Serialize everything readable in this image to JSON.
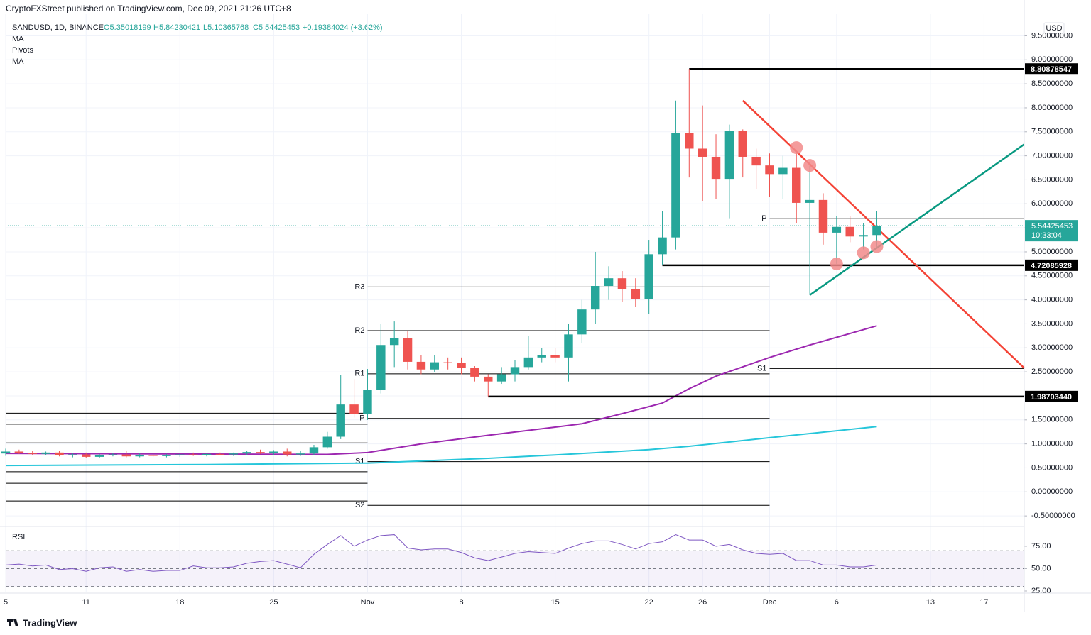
{
  "header": "CryptoFXStreet published on TradingView.com, Dec 09, 2021 21:26 UTC+8",
  "footer": "TradingView",
  "chart_data": [
    {
      "type": "candlestick",
      "title": "SANDUSD, 1D, BINANCE",
      "ohlc_labels": [
        "O5.35018199",
        "H5.84230421",
        "L5.10365768",
        "C5.54425453"
      ],
      "change_label": "+0.19384024 (+3.62%)",
      "currency": "USD",
      "countdown": "10:33:04",
      "x": [
        "10-05",
        "10-06",
        "10-07",
        "10-08",
        "10-09",
        "10-10",
        "10-11",
        "10-12",
        "10-13",
        "10-14",
        "10-15",
        "10-16",
        "10-17",
        "10-18",
        "10-19",
        "10-20",
        "10-21",
        "10-22",
        "10-23",
        "10-24",
        "10-25",
        "10-26",
        "10-27",
        "10-28",
        "10-29",
        "10-30",
        "10-31",
        "11-01",
        "11-02",
        "11-03",
        "11-04",
        "11-05",
        "11-06",
        "11-07",
        "11-08",
        "11-09",
        "11-10",
        "11-11",
        "11-12",
        "11-13",
        "11-14",
        "11-15",
        "11-16",
        "11-17",
        "11-18",
        "11-19",
        "11-20",
        "11-21",
        "11-22",
        "11-23",
        "11-24",
        "11-25",
        "11-26",
        "11-27",
        "11-28",
        "11-29",
        "11-30",
        "12-01",
        "12-02",
        "12-03",
        "12-04",
        "12-05",
        "12-06",
        "12-07",
        "12-08",
        "12-09"
      ],
      "open": [
        0.8,
        0.84,
        0.81,
        0.79,
        0.82,
        0.76,
        0.78,
        0.73,
        0.77,
        0.78,
        0.74,
        0.77,
        0.75,
        0.76,
        0.78,
        0.77,
        0.79,
        0.78,
        0.8,
        0.83,
        0.81,
        0.84,
        0.78,
        0.8,
        0.93,
        1.15,
        1.82,
        1.62,
        2.12,
        3.06,
        3.2,
        2.71,
        2.55,
        2.7,
        2.68,
        2.58,
        2.4,
        2.3,
        2.45,
        2.6,
        2.8,
        2.85,
        2.8,
        3.28,
        3.8,
        4.29,
        4.45,
        4.22,
        4.02,
        4.95,
        5.3,
        7.48,
        7.15,
        6.98,
        6.52,
        7.52,
        6.98,
        6.8,
        6.62,
        6.75,
        6.02,
        6.08,
        5.4,
        5.52,
        5.32,
        5.35018199
      ],
      "high": [
        0.9,
        0.88,
        0.86,
        0.84,
        0.85,
        0.8,
        0.82,
        0.79,
        0.81,
        0.86,
        0.8,
        0.8,
        0.79,
        0.8,
        0.82,
        0.81,
        0.82,
        0.82,
        0.86,
        0.88,
        0.87,
        0.9,
        0.85,
        0.98,
        1.25,
        2.43,
        2.35,
        2.56,
        3.5,
        3.55,
        3.35,
        2.85,
        2.85,
        2.8,
        2.8,
        2.62,
        2.45,
        2.6,
        2.75,
        3.25,
        3.0,
        3.0,
        3.5,
        4.0,
        5.0,
        4.7,
        4.6,
        4.45,
        5.25,
        5.85,
        8.15,
        8.81,
        8.05,
        7.45,
        7.65,
        7.55,
        7.15,
        7.05,
        7.0,
        7.1,
        6.8,
        6.22,
        5.75,
        5.75,
        5.6,
        5.84230421
      ],
      "low": [
        0.75,
        0.79,
        0.77,
        0.76,
        0.74,
        0.72,
        0.71,
        0.7,
        0.74,
        0.72,
        0.72,
        0.73,
        0.72,
        0.73,
        0.75,
        0.74,
        0.76,
        0.75,
        0.77,
        0.79,
        0.77,
        0.74,
        0.75,
        0.77,
        0.9,
        1.1,
        1.55,
        1.5,
        2.05,
        2.6,
        2.55,
        2.45,
        2.5,
        2.55,
        2.45,
        2.3,
        1.99,
        2.25,
        2.3,
        2.55,
        2.7,
        2.7,
        2.3,
        3.1,
        3.5,
        4.0,
        3.95,
        3.85,
        3.7,
        4.72,
        5.05,
        6.55,
        6.05,
        6.1,
        5.7,
        6.55,
        6.3,
        6.15,
        6.1,
        5.6,
        4.1,
        5.15,
        4.75,
        5.2,
        5.05,
        5.10365768
      ],
      "close": [
        0.84,
        0.81,
        0.79,
        0.82,
        0.76,
        0.78,
        0.73,
        0.77,
        0.78,
        0.74,
        0.77,
        0.75,
        0.76,
        0.78,
        0.77,
        0.79,
        0.78,
        0.8,
        0.83,
        0.81,
        0.84,
        0.78,
        0.8,
        0.93,
        1.15,
        1.82,
        1.62,
        2.12,
        3.06,
        3.2,
        2.71,
        2.55,
        2.7,
        2.68,
        2.58,
        2.4,
        2.3,
        2.45,
        2.6,
        2.8,
        2.85,
        2.8,
        3.28,
        3.8,
        4.29,
        4.45,
        4.22,
        4.02,
        4.95,
        5.3,
        7.48,
        7.15,
        6.98,
        6.52,
        7.52,
        6.98,
        6.8,
        6.62,
        6.75,
        6.02,
        6.08,
        5.4,
        5.52,
        5.32,
        5.35,
        5.54425453
      ],
      "up_color": "#26a69a",
      "down_color": "#ef5350",
      "xlim": [
        "10-05",
        "12-20"
      ],
      "xticks": [
        {
          "value": "10-05",
          "label": "5"
        },
        {
          "value": "10-11",
          "label": "11"
        },
        {
          "value": "10-18",
          "label": "18"
        },
        {
          "value": "10-25",
          "label": "25"
        },
        {
          "value": "11-01",
          "label": "Nov"
        },
        {
          "value": "11-08",
          "label": "8"
        },
        {
          "value": "11-15",
          "label": "15"
        },
        {
          "value": "11-22",
          "label": "22"
        },
        {
          "value": "11-26",
          "label": "26"
        },
        {
          "value": "12-01",
          "label": "Dec"
        },
        {
          "value": "12-06",
          "label": "6"
        },
        {
          "value": "12-13",
          "label": "13"
        },
        {
          "value": "12-17",
          "label": "17"
        }
      ],
      "ylim": [
        -0.69,
        9.95
      ],
      "yticks": [
        {
          "value": 9.5,
          "label": "9.50000000"
        },
        {
          "value": 9,
          "label": "9.00000000"
        },
        {
          "value": 8.5,
          "label": "8.50000000"
        },
        {
          "value": 8,
          "label": "8.00000000"
        },
        {
          "value": 7.5,
          "label": "7.50000000"
        },
        {
          "value": 7,
          "label": "7.00000000"
        },
        {
          "value": 6.5,
          "label": "6.50000000"
        },
        {
          "value": 6,
          "label": "6.00000000"
        },
        {
          "value": 5.5,
          "label": "5.50000000"
        },
        {
          "value": 5,
          "label": "5.00000000"
        },
        {
          "value": 4.5,
          "label": "4.50000000"
        },
        {
          "value": 4,
          "label": "4.00000000"
        },
        {
          "value": 3.5,
          "label": "3.50000000"
        },
        {
          "value": 3,
          "label": "3.00000000"
        },
        {
          "value": 2.5,
          "label": "2.50000000"
        },
        {
          "value": 2,
          "label": "2.00000000"
        },
        {
          "value": 1.5,
          "label": "1.50000000"
        },
        {
          "value": 1,
          "label": "1.00000000"
        },
        {
          "value": 0.5,
          "label": "0.50000000"
        },
        {
          "value": 0,
          "label": "0.00000000"
        },
        {
          "value": -0.5,
          "label": "-0.50000000"
        }
      ],
      "grid": true,
      "moving_averages": [
        {
          "name": "MA",
          "color": "#26c6da",
          "x": [
            "10-05",
            "10-20",
            "11-01",
            "11-10",
            "11-15",
            "11-22",
            "11-25",
            "12-01",
            "12-09"
          ],
          "values": [
            0.55,
            0.57,
            0.6,
            0.7,
            0.77,
            0.88,
            0.95,
            1.13,
            1.36
          ]
        },
        {
          "name": "MA",
          "color": "#9c27b0",
          "x": [
            "10-05",
            "10-29",
            "11-01",
            "11-05",
            "11-10",
            "11-15",
            "11-17",
            "11-20",
            "11-23",
            "11-25",
            "11-27",
            "12-01",
            "12-04",
            "12-09"
          ],
          "values": [
            0.8,
            0.78,
            0.82,
            1.0,
            1.18,
            1.35,
            1.42,
            1.63,
            1.85,
            2.15,
            2.41,
            2.8,
            3.06,
            3.46
          ]
        }
      ],
      "pivots": {
        "name": "Pivots",
        "color": "#000000",
        "periods": [
          {
            "start": "10-01",
            "end": "11-01",
            "levels": [
              {
                "name": null,
                "value": 1.64
              },
              {
                "name": null,
                "value": 1.41
              },
              {
                "name": null,
                "value": 1.02
              },
              {
                "name": null,
                "value": 0.42
              },
              {
                "name": null,
                "value": 0.18
              },
              {
                "name": null,
                "value": -0.19
              }
            ]
          },
          {
            "start": "11-01",
            "end": "12-01",
            "levels": [
              {
                "name": "R3",
                "value": 4.27
              },
              {
                "name": "R2",
                "value": 3.36
              },
              {
                "name": "R1",
                "value": 2.46
              },
              {
                "name": "P",
                "value": 1.53
              },
              {
                "name": "S1",
                "value": 0.63
              },
              {
                "name": "S2",
                "value": -0.28
              }
            ]
          },
          {
            "start": "12-01",
            "levels": [
              {
                "name": "P",
                "value": 5.69
              },
              {
                "name": "S1",
                "value": 2.57
              }
            ]
          }
        ]
      },
      "levels": [
        {
          "value": 8.80878547,
          "start": "11-25"
        },
        {
          "value": 4.72085928,
          "start": "11-23"
        },
        {
          "value": 1.9870344,
          "label": "1.98703440",
          "start": "11-10"
        }
      ],
      "level_color": "#000000",
      "trendlines": [
        {
          "color": "#f44336",
          "x": [
            "11-29",
            "12-20"
          ],
          "values": [
            8.15,
            2.58
          ]
        },
        {
          "color": "#089981",
          "x": [
            "12-04",
            "12-20"
          ],
          "values": [
            4.1,
            7.24
          ]
        }
      ],
      "markers": {
        "color": "#f28b8b",
        "x": [
          "12-03",
          "12-04",
          "12-06",
          "12-08",
          "12-09"
        ],
        "values": [
          7.17,
          6.8,
          4.75,
          4.98,
          5.11
        ]
      }
    },
    {
      "type": "line",
      "title": "RSI",
      "x": [
        "10-05",
        "10-06",
        "10-07",
        "10-08",
        "10-09",
        "10-10",
        "10-11",
        "10-12",
        "10-13",
        "10-14",
        "10-15",
        "10-16",
        "10-17",
        "10-18",
        "10-19",
        "10-20",
        "10-21",
        "10-22",
        "10-23",
        "10-24",
        "10-25",
        "10-26",
        "10-27",
        "10-28",
        "10-29",
        "10-30",
        "10-31",
        "11-01",
        "11-02",
        "11-03",
        "11-04",
        "11-05",
        "11-06",
        "11-07",
        "11-08",
        "11-09",
        "11-10",
        "11-11",
        "11-12",
        "11-13",
        "11-14",
        "11-15",
        "11-16",
        "11-17",
        "11-18",
        "11-19",
        "11-20",
        "11-21",
        "11-22",
        "11-23",
        "11-24",
        "11-25",
        "11-26",
        "11-27",
        "11-28",
        "11-29",
        "11-30",
        "12-01",
        "12-02",
        "12-03",
        "12-04",
        "12-05",
        "12-06",
        "12-07",
        "12-08",
        "12-09"
      ],
      "series": [
        {
          "color": "#7e57c2",
          "values": [
            54,
            55,
            53,
            54,
            49,
            50,
            47,
            51,
            52,
            47,
            49,
            47,
            48,
            48,
            53,
            51,
            51,
            52,
            56,
            58,
            59,
            55,
            51,
            66,
            77,
            87,
            75,
            82,
            87,
            88,
            73,
            71,
            72,
            72,
            68,
            62,
            59,
            63,
            67,
            69,
            68,
            67,
            73,
            78,
            81,
            81,
            77,
            72,
            78,
            80,
            88,
            82,
            82,
            75,
            77,
            71,
            67,
            66,
            67,
            59,
            59,
            54,
            54,
            52,
            52,
            54
          ]
        }
      ],
      "ylim": [
        23.4,
        94.8
      ],
      "yticks": [
        {
          "value": 75,
          "label": "75.00"
        },
        {
          "value": 50,
          "label": "50.00"
        },
        {
          "value": 25,
          "label": "25.00"
        }
      ],
      "bands": {
        "upper": 70,
        "middle": 50,
        "lower": 30
      }
    }
  ]
}
